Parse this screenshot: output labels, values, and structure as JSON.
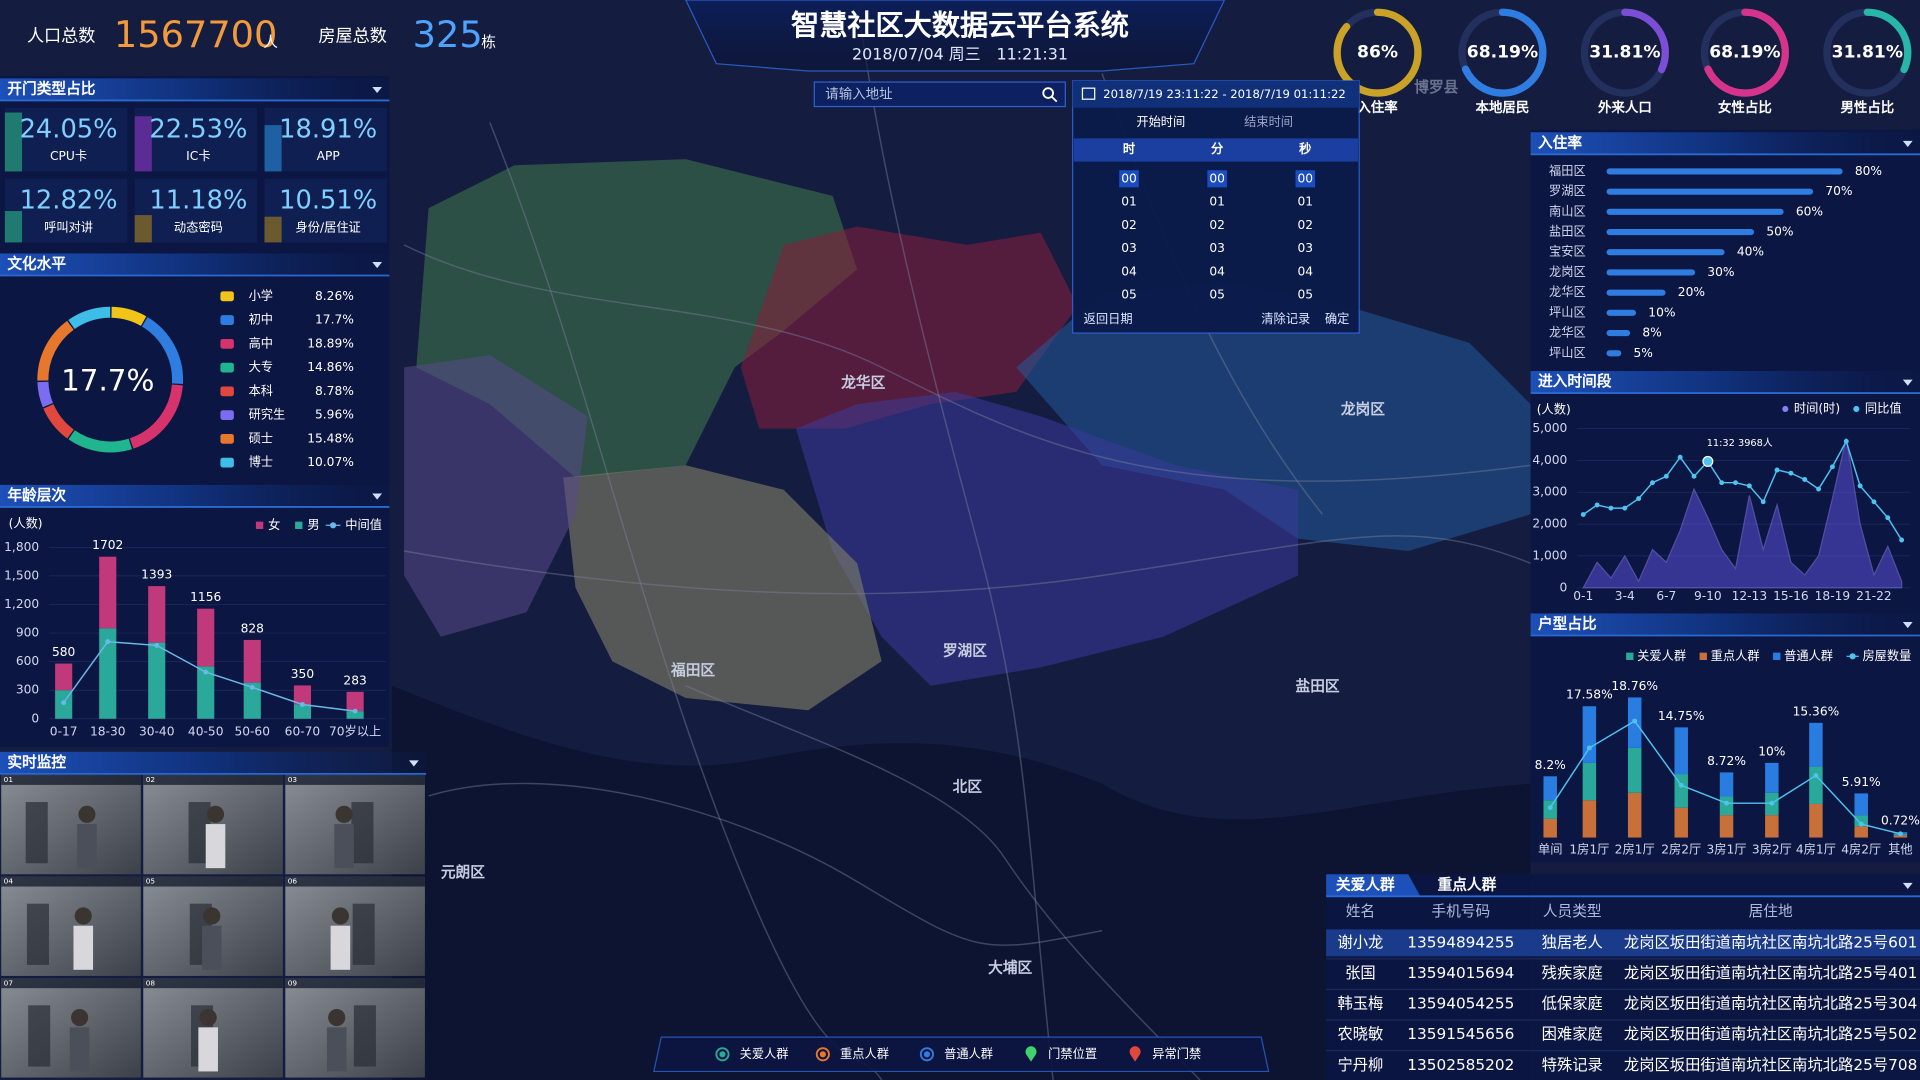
{
  "header": {
    "title": "智慧社区大数据云平台系统",
    "datetime": "2018/07/04 周三　11:21:31",
    "population_label": "人口总数",
    "population": 1567700,
    "population_unit": "人",
    "houses_label": "房屋总数",
    "houses": 325,
    "houses_unit": "栋"
  },
  "gauges": {
    "type": "gauge",
    "categories": [
      "入住率",
      "本地居民",
      "外来人口",
      "女性占比",
      "男性占比"
    ],
    "values": [
      86,
      68.19,
      31.81,
      68.19,
      31.81
    ],
    "value_labels": [
      "86%",
      "68.19%",
      "31.81%",
      "68.19%",
      "31.81%"
    ],
    "colors": [
      "#c9a227",
      "#2f7de1",
      "#7a4fd6",
      "#d6338a",
      "#27b6a8"
    ]
  },
  "door_types": {
    "type": "tiles",
    "title": "开门类型占比",
    "categories": [
      "CPU卡",
      "IC卡",
      "APP",
      "呼叫对讲",
      "动态密码",
      "身份/居住证"
    ],
    "values": [
      24.05,
      22.53,
      18.91,
      12.82,
      11.18,
      10.51
    ],
    "value_labels": [
      "24.05%",
      "22.53%",
      "18.91%",
      "12.82%",
      "11.18%",
      "10.51%"
    ],
    "colors": [
      "#1f7a72",
      "#5b2c93",
      "#1f5fa3",
      "#1f7a72",
      "#6b5a2e",
      "#6b5a2e"
    ]
  },
  "education": {
    "type": "pie",
    "title": "文化水平",
    "categories": [
      "小学",
      "初中",
      "高中",
      "大专",
      "本科",
      "研究生",
      "硕士",
      "博士"
    ],
    "values": [
      8.26,
      17.7,
      18.89,
      14.86,
      8.78,
      5.96,
      15.48,
      10.07
    ],
    "value_labels": [
      "8.26%",
      "17.7%",
      "18.89%",
      "14.86%",
      "8.78%",
      "5.96%",
      "15.48%",
      "10.07%"
    ],
    "colors": [
      "#f0c419",
      "#2f7de1",
      "#d6336c",
      "#1fb58f",
      "#e0483e",
      "#7b6cf0",
      "#e8772e",
      "#3dbde8"
    ]
  },
  "age": {
    "type": "bar",
    "title": "年龄层次",
    "y_label": "(人数)",
    "categories": [
      "0-17",
      "18-30",
      "30-40",
      "40-50",
      "50-60",
      "60-70",
      "70岁以上"
    ],
    "series": [
      {
        "name": "女",
        "color": "#c0397a",
        "values": [
          280,
          752,
          593,
          606,
          448,
          200,
          203
        ]
      },
      {
        "name": "男",
        "color": "#2aa89a",
        "values": [
          300,
          950,
          800,
          550,
          380,
          150,
          80
        ]
      },
      {
        "name": "中间值",
        "type": "line",
        "color": "#6ab8e8",
        "values": [
          170,
          810,
          770,
          490,
          330,
          150,
          80
        ]
      }
    ],
    "totals": [
      580,
      1702,
      1393,
      1156,
      828,
      350,
      283
    ],
    "ylim": [
      0,
      1800
    ],
    "yticks": [
      0,
      300,
      600,
      900,
      {
        "value": 1200,
        "label": "1,200"
      },
      {
        "value": 1500,
        "label": "1,500"
      },
      {
        "value": 1800,
        "label": "1,800"
      }
    ]
  },
  "monitor": {
    "title": "实时监控",
    "cameras": [
      "01",
      "02",
      "03",
      "04",
      "05",
      "06",
      "07",
      "08",
      "09"
    ]
  },
  "map": {
    "districts": [
      "龙华区",
      "龙岗区",
      "福田区",
      "罗湖区",
      "盐田区",
      "北区",
      "元朗区",
      "大埔区",
      "博罗县"
    ],
    "search_placeholder": "请输入地址",
    "legend": [
      "关爱人群",
      "重点人群",
      "普通人群",
      "门禁位置",
      "异常门禁"
    ],
    "legend_colors": [
      "#2aa89a",
      "#e8772e",
      "#2f7de1",
      "#3fd36a",
      "#e0483e"
    ],
    "date_picker": {
      "range": "2018/7/19 23:11:22 - 2018/7/19 01:11:22",
      "tabs": [
        "开始时间",
        "结束时间"
      ],
      "columns": [
        "时",
        "分",
        "秒"
      ],
      "rows": [
        "00",
        "01",
        "02",
        "03",
        "04",
        "05"
      ],
      "buttons": [
        "返回日期",
        "清除记录",
        "确定"
      ]
    }
  },
  "occupancy": {
    "type": "hbar",
    "title": "入住率",
    "categories": [
      "福田区",
      "罗湖区",
      "南山区",
      "盐田区",
      "宝安区",
      "龙岗区",
      "龙华区",
      "坪山区",
      "龙华区",
      "坪山区"
    ],
    "values": [
      80,
      70,
      60,
      50,
      40,
      30,
      20,
      10,
      8,
      5
    ],
    "value_labels": [
      "80%",
      "70%",
      "60%",
      "50%",
      "40%",
      "30%",
      "20%",
      "10%",
      "8%",
      "5%"
    ],
    "color": "#2f7de1",
    "xlim": [
      0,
      100
    ]
  },
  "entry_time": {
    "type": "line",
    "title": "进入时间段",
    "y_label": "(人数)",
    "categories": [
      "0-1",
      null,
      null,
      "3-4",
      null,
      null,
      "6-7",
      null,
      null,
      "9-10",
      null,
      null,
      "12-13",
      null,
      null,
      "15-16",
      null,
      null,
      "18-19",
      null,
      null,
      "21-22",
      null,
      null
    ],
    "series": [
      {
        "name": "时间(时)",
        "type": "area",
        "color": "#5b4fd6",
        "values": [
          0,
          800,
          300,
          1000,
          200,
          1200,
          800,
          1800,
          3100,
          2200,
          1200,
          600,
          2900,
          1200,
          2600,
          800,
          400,
          1000,
          2800,
          4700,
          2000,
          400,
          1300,
          200
        ]
      },
      {
        "name": "同比值",
        "type": "line",
        "color": "#4ec3f0",
        "values": [
          2300,
          2600,
          2500,
          2500,
          2800,
          3300,
          3500,
          4100,
          3500,
          3968,
          3300,
          3300,
          3200,
          2700,
          3700,
          3600,
          3400,
          3100,
          3800,
          4600,
          3200,
          2700,
          2200,
          1500
        ]
      }
    ],
    "annotation": "11:32  3968人",
    "ylim": [
      0,
      5000
    ],
    "yticks": [
      0,
      {
        "value": 1000,
        "label": "1,000"
      },
      {
        "value": 2000,
        "label": "2,000"
      },
      {
        "value": 3000,
        "label": "3,000"
      },
      {
        "value": 4000,
        "label": "4,000"
      },
      {
        "value": 5000,
        "label": "5,000"
      }
    ]
  },
  "housing": {
    "type": "bar",
    "title": "户型占比",
    "categories": [
      "单间",
      "1房1厅",
      "2房1厅",
      "2房2厅",
      "3房1厅",
      "3房2厅",
      "4房1厅",
      "4房2厅",
      "其他"
    ],
    "series": [
      {
        "name": "关爱人群",
        "color": "#2aa89a",
        "values": [
          2.5,
          5,
          6,
          4.5,
          2.5,
          3,
          5,
          1.5,
          0.2
        ]
      },
      {
        "name": "重点人群",
        "color": "#c8703a",
        "values": [
          2.5,
          5,
          6,
          4,
          3,
          3,
          4.5,
          1.5,
          0.3
        ]
      },
      {
        "name": "普通人群",
        "color": "#2a7de0",
        "values": [
          3.2,
          7.58,
          6.76,
          6.25,
          3.22,
          4,
          5.86,
          2.91,
          0.22
        ]
      },
      {
        "name": "房屋数量",
        "type": "line",
        "color": "#4ec3f0",
        "values": [
          4,
          12,
          15.6,
          7,
          4.6,
          4.6,
          8.3,
          1.8,
          0.5
        ]
      }
    ],
    "totals": [
      8.2,
      17.58,
      18.76,
      14.75,
      8.72,
      10,
      15.36,
      5.91,
      0.72
    ],
    "total_labels": [
      "8.2%",
      "17.58%",
      "18.76%",
      "14.75%",
      "8.72%",
      "10%",
      "15.36%",
      "5.91%",
      "0.72%"
    ],
    "ylim": [
      0,
      20
    ]
  },
  "people_table": {
    "tabs": [
      "关爱人群",
      "重点人群"
    ],
    "columns": [
      "姓名",
      "手机号码",
      "人员类型",
      "居住地"
    ],
    "rows": [
      [
        "谢小龙",
        "13594894255",
        "独居老人",
        "龙岗区坂田街道南坑社区南坑北路25号601"
      ],
      [
        "张国",
        "13594015694",
        "残疾家庭",
        "龙岗区坂田街道南坑社区南坑北路25号401"
      ],
      [
        "韩玉梅",
        "13594054255",
        "低保家庭",
        "龙岗区坂田街道南坑社区南坑北路25号304"
      ],
      [
        "农晓敏",
        "13591545656",
        "困难家庭",
        "龙岗区坂田街道南坑社区南坑北路25号502"
      ],
      [
        "宁丹柳",
        "13502585202",
        "特殊记录",
        "龙岗区坂田街道南坑社区南坑北路25号708"
      ]
    ]
  }
}
